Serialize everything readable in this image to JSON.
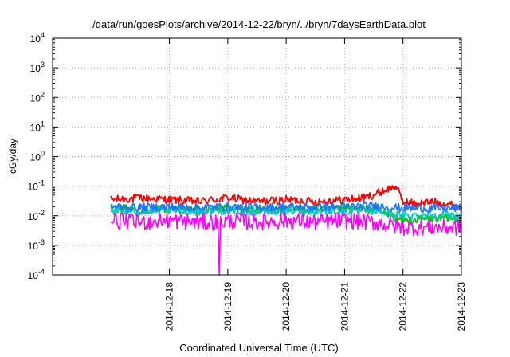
{
  "chart_data": {
    "type": "line",
    "title": "/data/run/goesPlots/archive/2014-12-22/bryn/../bryn/7daysEarthData.plot",
    "xlabel": "Coordinated Universal Time (UTC)",
    "ylabel": "cGy/day",
    "y_scale": "log",
    "ylim": [
      0.0001,
      10000
    ],
    "xlim": [
      "2014-12-16T00:00",
      "2014-12-23T00:00"
    ],
    "x_ticks": [
      "2014-12-18",
      "2014-12-19",
      "2014-12-20",
      "2014-12-21",
      "2014-12-22",
      "2014-12-23"
    ],
    "y_ticks": [
      {
        "base": "10",
        "exp": "-4",
        "value": 0.0001
      },
      {
        "base": "10",
        "exp": "-3",
        "value": 0.001
      },
      {
        "base": "10",
        "exp": "-2",
        "value": 0.01
      },
      {
        "base": "10",
        "exp": "-1",
        "value": 0.1
      },
      {
        "base": "10",
        "exp": "0",
        "value": 1
      },
      {
        "base": "10",
        "exp": "1",
        "value": 10
      },
      {
        "base": "10",
        "exp": "2",
        "value": 100
      },
      {
        "base": "10",
        "exp": "3",
        "value": 1000
      },
      {
        "base": "10",
        "exp": "4",
        "value": 10000
      }
    ],
    "grid": true,
    "series": [
      {
        "color": "#ff0000",
        "x": [
          "2014-12-17T00:00",
          "2014-12-17T12:00",
          "2014-12-18T00:00",
          "2014-12-18T12:00",
          "2014-12-19T00:00",
          "2014-12-19T12:00",
          "2014-12-20T00:00",
          "2014-12-20T12:00",
          "2014-12-21T00:00",
          "2014-12-21T08:00",
          "2014-12-21T14:00",
          "2014-12-21T18:00",
          "2014-12-21T21:00",
          "2014-12-22T00:00",
          "2014-12-22T06:00",
          "2014-12-22T12:00",
          "2014-12-22T18:00",
          "2014-12-23T00:00"
        ],
        "values": [
          0.035,
          0.04,
          0.035,
          0.03,
          0.04,
          0.03,
          0.035,
          0.03,
          0.035,
          0.04,
          0.06,
          0.08,
          0.1,
          0.03,
          0.025,
          0.03,
          0.025,
          0.02
        ]
      },
      {
        "color": "#00c800",
        "x": [
          "2014-12-17T00:00",
          "2014-12-17T12:00",
          "2014-12-18T00:00",
          "2014-12-18T12:00",
          "2014-12-19T00:00",
          "2014-12-19T12:00",
          "2014-12-20T00:00",
          "2014-12-20T12:00",
          "2014-12-21T00:00",
          "2014-12-21T12:00",
          "2014-12-22T00:00",
          "2014-12-22T12:00",
          "2014-12-23T00:00"
        ],
        "values": [
          0.018,
          0.016,
          0.017,
          0.016,
          0.017,
          0.016,
          0.016,
          0.017,
          0.016,
          0.017,
          0.007,
          0.008,
          0.008
        ]
      },
      {
        "color": "#00c8c8",
        "x": [
          "2014-12-17T00:00",
          "2014-12-17T12:00",
          "2014-12-18T00:00",
          "2014-12-18T12:00",
          "2014-12-19T00:00",
          "2014-12-19T12:00",
          "2014-12-20T00:00",
          "2014-12-20T12:00",
          "2014-12-21T00:00",
          "2014-12-21T12:00",
          "2014-12-22T00:00",
          "2014-12-22T12:00",
          "2014-12-23T00:00"
        ],
        "values": [
          0.015,
          0.014,
          0.015,
          0.014,
          0.015,
          0.014,
          0.014,
          0.015,
          0.014,
          0.015,
          0.01,
          0.011,
          0.01
        ]
      },
      {
        "color": "#ff00ff",
        "x": [
          "2014-12-17T00:00",
          "2014-12-17T12:00",
          "2014-12-18T00:00",
          "2014-12-18T12:00",
          "2014-12-18T20:00",
          "2014-12-18T20:30",
          "2014-12-18T21:00",
          "2014-12-19T00:00",
          "2014-12-19T12:00",
          "2014-12-20T00:00",
          "2014-12-20T12:00",
          "2014-12-21T00:00",
          "2014-12-21T12:00",
          "2014-12-22T00:00",
          "2014-12-22T12:00",
          "2014-12-23T00:00"
        ],
        "values": [
          0.007,
          0.006,
          0.007,
          0.006,
          0.006,
          0.0001,
          0.006,
          0.007,
          0.006,
          0.007,
          0.006,
          0.007,
          0.006,
          0.004,
          0.004,
          0.004
        ]
      },
      {
        "color": "#1e78ff",
        "x": [
          "2014-12-17T00:00",
          "2014-12-17T12:00",
          "2014-12-18T00:00",
          "2014-12-18T12:00",
          "2014-12-19T00:00",
          "2014-12-19T12:00",
          "2014-12-20T00:00",
          "2014-12-20T12:00",
          "2014-12-21T00:00",
          "2014-12-21T12:00",
          "2014-12-22T00:00",
          "2014-12-22T12:00",
          "2014-12-23T00:00"
        ],
        "values": [
          0.02,
          0.019,
          0.02,
          0.019,
          0.02,
          0.019,
          0.02,
          0.019,
          0.02,
          0.022,
          0.018,
          0.018,
          0.018
        ]
      }
    ]
  }
}
